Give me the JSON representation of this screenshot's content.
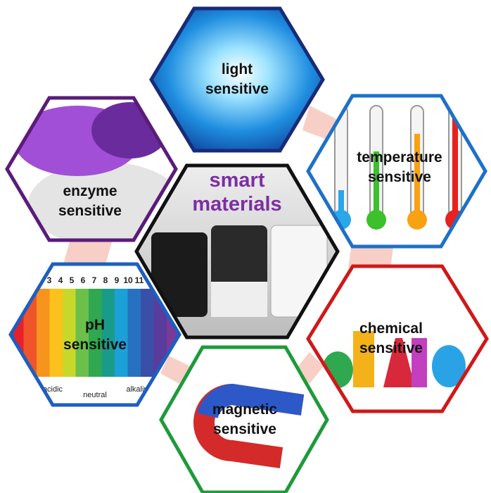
{
  "center": {
    "label": "smart materials"
  },
  "nodes": [
    {
      "label": "light sensitive"
    },
    {
      "label": "temperature sensitive"
    },
    {
      "label": "enzyme sensitive"
    },
    {
      "label": "pH sensitive",
      "scale": [
        "3",
        "4",
        "5",
        "6",
        "7",
        "8",
        "9",
        "10",
        "11"
      ],
      "ends": [
        "acidic",
        "neutral",
        "alkaline"
      ]
    },
    {
      "label": "chemical sensitive"
    },
    {
      "label": "magnetic sensitive"
    }
  ]
}
